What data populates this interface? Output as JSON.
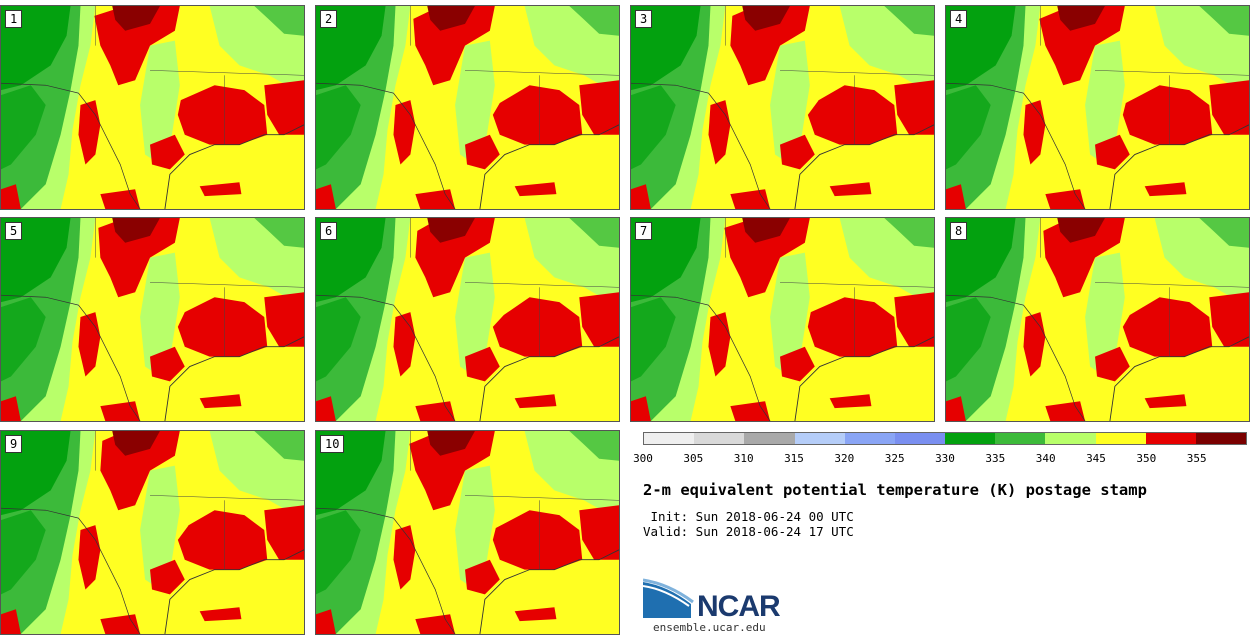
{
  "panels": [
    "1",
    "2",
    "3",
    "4",
    "5",
    "6",
    "7",
    "8",
    "9",
    "10"
  ],
  "colorbar": {
    "colors": [
      "#efefef",
      "#d9d9d9",
      "#a9a9a9",
      "#b5cdf8",
      "#8aa5f5",
      "#7a8ff0",
      "#03a10f",
      "#3cba3a",
      "#b8ff6a",
      "#ffff22",
      "#e60000",
      "#7a0000"
    ],
    "ticks": [
      "300",
      "305",
      "310",
      "315",
      "320",
      "325",
      "330",
      "335",
      "340",
      "345",
      "350",
      "355"
    ]
  },
  "title": "2-m equivalent potential temperature (K) postage stamp",
  "init": " Init: Sun 2018-06-24 00 UTC",
  "valid": "Valid: Sun 2018-06-24 17 UTC",
  "logo": {
    "text": "NCAR",
    "site": "ensemble.ucar.edu"
  }
}
